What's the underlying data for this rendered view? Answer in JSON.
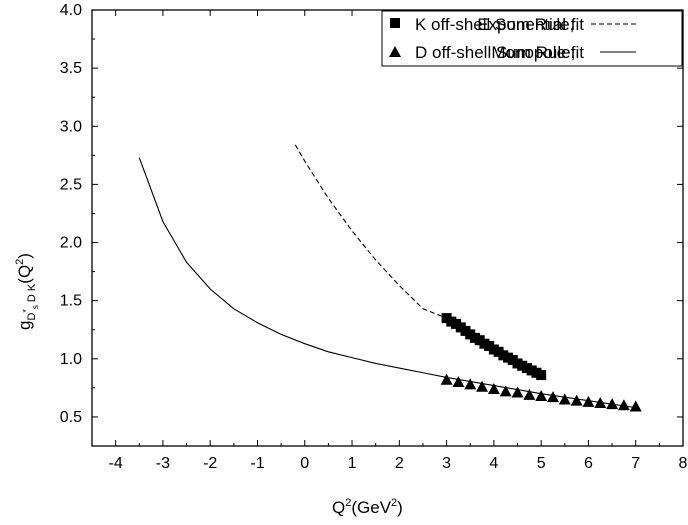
{
  "chart_data": {
    "type": "scatter",
    "title": "",
    "xlabel": "Q",
    "xlabel_sup1": "2",
    "xlabel_unit": "(GeV",
    "xlabel_sup2": "2",
    "xlabel_close": ")",
    "ylabel_base": "g",
    "ylabel_sub1": "D",
    "ylabel_subsup": "*",
    "ylabel_subsub": "s",
    "ylabel_sub2": "D K",
    "ylabel_arg": "(Q",
    "ylabel_argsup": "2",
    "ylabel_argclose": ")",
    "xlim": [
      -4.5,
      8
    ],
    "ylim": [
      0.25,
      4.0
    ],
    "xticks": [
      "-4",
      "-3",
      "-2",
      "-1",
      "0",
      "1",
      "2",
      "3",
      "4",
      "5",
      "6",
      "7",
      "8"
    ],
    "xtick_values": [
      -4,
      -3,
      -2,
      -1,
      0,
      1,
      2,
      3,
      4,
      5,
      6,
      7,
      8
    ],
    "yticks": [
      "0.5",
      "1.0",
      "1.5",
      "2.0",
      "2.5",
      "3.0",
      "3.5",
      "4.0"
    ],
    "ytick_values": [
      0.5,
      1.0,
      1.5,
      2.0,
      2.5,
      3.0,
      3.5,
      4.0
    ],
    "grid": false,
    "legend_position": "top-right",
    "legend": [
      {
        "marker": "square",
        "label": "K off-shell Sum Rule,",
        "line": "dashed",
        "line_label": "Exponential fit"
      },
      {
        "marker": "triangle",
        "label": "D off-shell Sum Rule,",
        "line": "solid",
        "line_label": "Monopole fit"
      }
    ],
    "series": [
      {
        "marker": "square",
        "x": [
          3.0,
          3.1,
          3.2,
          3.3,
          3.4,
          3.5,
          3.6,
          3.7,
          3.8,
          3.9,
          4.0,
          4.1,
          4.2,
          4.3,
          4.4,
          4.5,
          4.6,
          4.7,
          4.8,
          4.9,
          5.0
        ],
        "y": [
          1.35,
          1.32,
          1.3,
          1.27,
          1.24,
          1.21,
          1.18,
          1.16,
          1.13,
          1.11,
          1.08,
          1.06,
          1.03,
          1.01,
          0.99,
          0.96,
          0.94,
          0.92,
          0.9,
          0.88,
          0.86
        ]
      },
      {
        "marker": "triangle",
        "x": [
          3.0,
          3.25,
          3.5,
          3.75,
          4.0,
          4.25,
          4.5,
          4.75,
          5.0,
          5.25,
          5.5,
          5.75,
          6.0,
          6.25,
          6.5,
          6.75,
          7.0
        ],
        "y": [
          0.82,
          0.8,
          0.78,
          0.76,
          0.74,
          0.72,
          0.71,
          0.69,
          0.68,
          0.67,
          0.65,
          0.64,
          0.63,
          0.62,
          0.61,
          0.6,
          0.59
        ]
      },
      {
        "line": "dashed",
        "fit": "exponential",
        "x": [
          -0.2,
          0.0,
          0.5,
          1.0,
          1.5,
          2.0,
          2.5,
          3.0
        ],
        "y": [
          2.84,
          2.7,
          2.38,
          2.1,
          1.85,
          1.63,
          1.43,
          1.35
        ]
      },
      {
        "line": "solid",
        "fit": "monopole",
        "x": [
          -3.5,
          -3.0,
          -2.5,
          -2.0,
          -1.5,
          -1.0,
          -0.5,
          0.0,
          0.5,
          1.0,
          1.5,
          2.0,
          2.5,
          3.0,
          4.0,
          5.0,
          6.0,
          7.0
        ],
        "y": [
          2.73,
          2.18,
          1.83,
          1.6,
          1.43,
          1.31,
          1.21,
          1.13,
          1.06,
          1.01,
          0.96,
          0.92,
          0.88,
          0.84,
          0.77,
          0.7,
          0.64,
          0.58
        ]
      }
    ]
  }
}
